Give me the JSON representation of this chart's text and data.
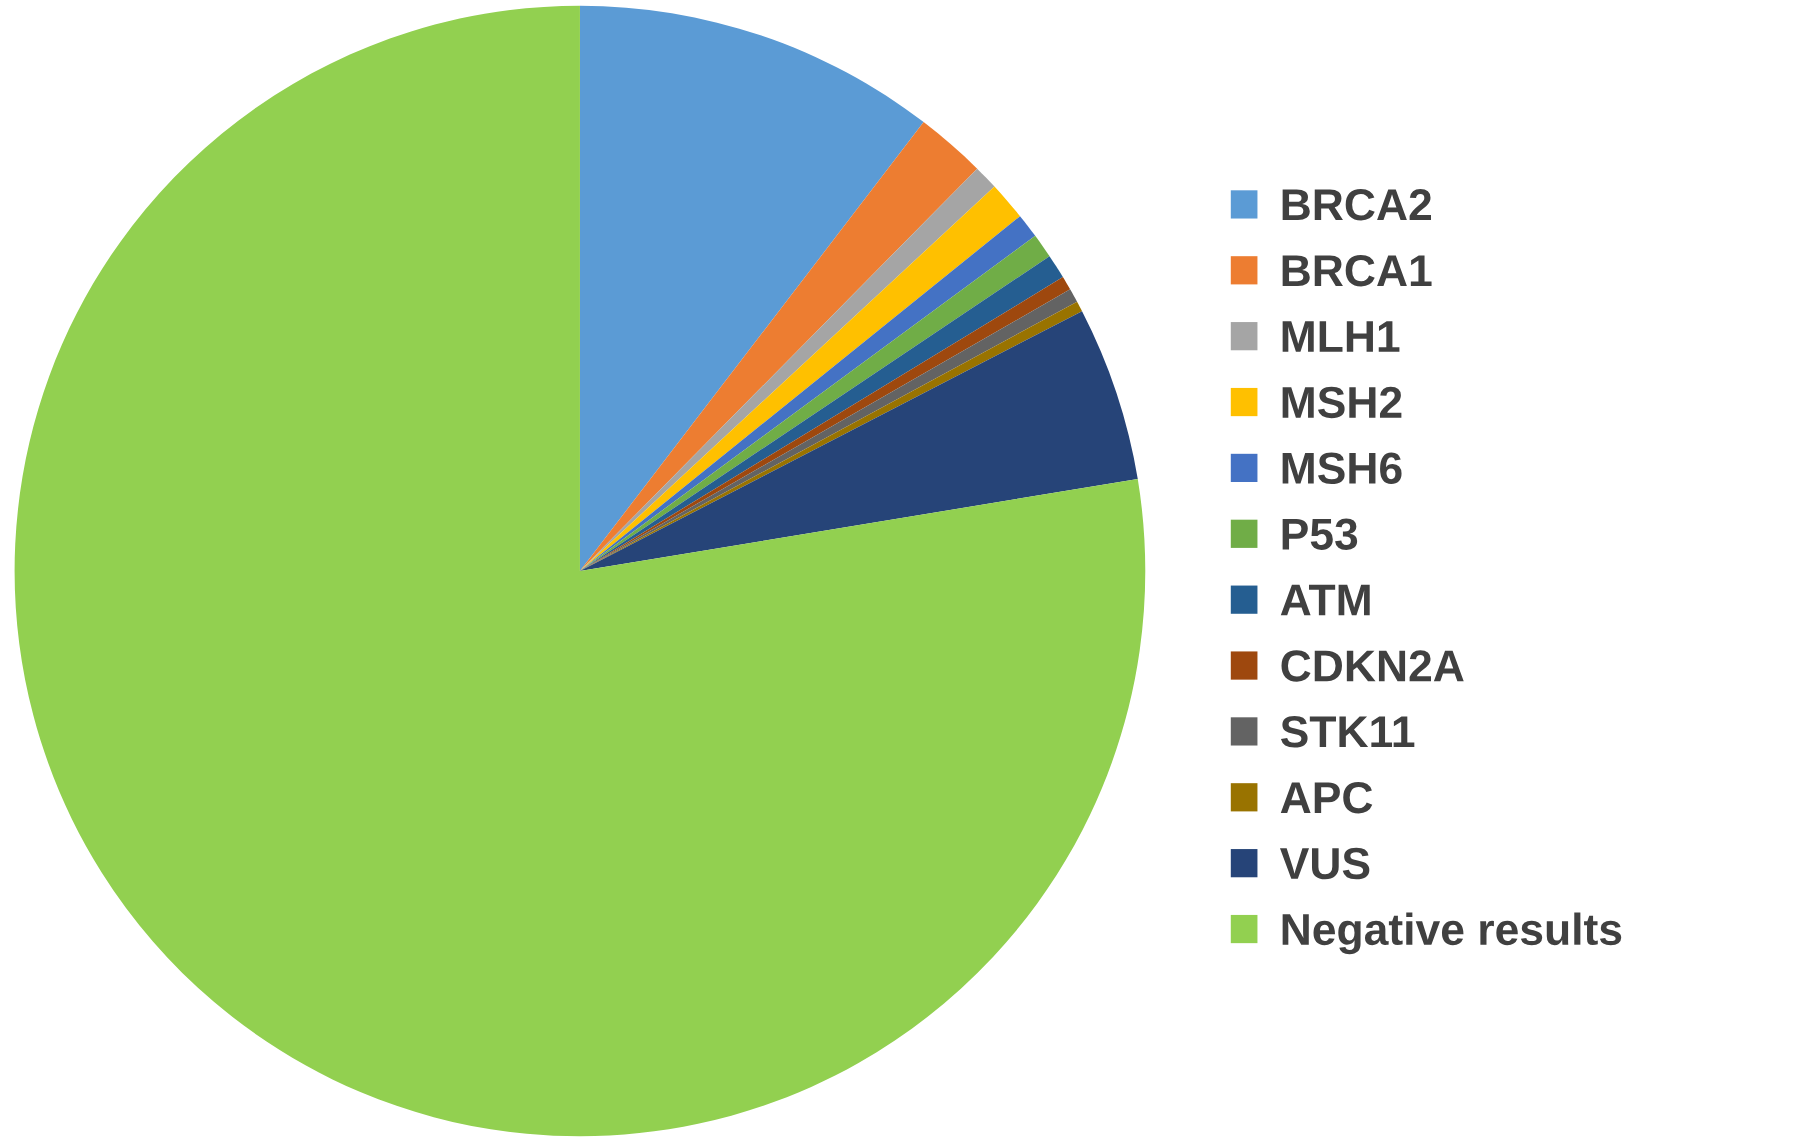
{
  "chart_data": {
    "type": "pie",
    "categories": [
      "BRCA2",
      "BRCA1",
      "MLH1",
      "MSH2",
      "MSH6",
      "P53",
      "ATM",
      "CDKN2A",
      "STK11",
      "APC",
      "VUS",
      "Negative results"
    ],
    "values": [
      10.4,
      2.0,
      0.7,
      1.1,
      0.7,
      0.7,
      0.7,
      0.4,
      0.4,
      0.3,
      5.0,
      77.6
    ],
    "colors": [
      "#5b9bd5",
      "#ed7d31",
      "#a5a5a5",
      "#ffc000",
      "#4472c4",
      "#70ad47",
      "#255e91",
      "#9e480e",
      "#636363",
      "#997300",
      "#264478",
      "#92d050"
    ],
    "legend": "right"
  }
}
